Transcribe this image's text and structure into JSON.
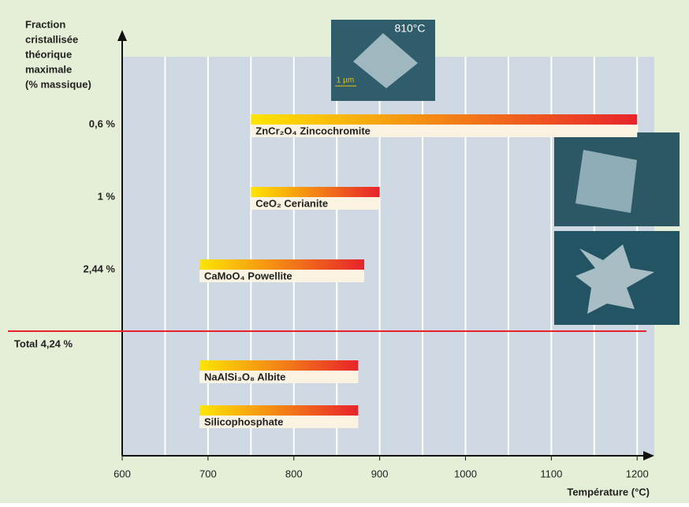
{
  "chart_data": {
    "type": "range",
    "y_title_lines": [
      "Fraction",
      "cristallisée",
      "théorique",
      "maximale",
      "(% massique)"
    ],
    "x_title": "Température (°C)",
    "bars": [
      {
        "name": "ZnCr₂O₄ Zincochromite",
        "fraction": "0,6 %",
        "start": 750,
        "end": 1200
      },
      {
        "name": "CeO₂ Cerianite",
        "fraction": "1 %",
        "start": 750,
        "end": 900
      },
      {
        "name": "CaMoO₄ Powellite",
        "fraction": "2,44 %",
        "start": 690,
        "end": 882
      },
      {
        "name": "NaAlSi₃O₈ Albite",
        "start": 690,
        "end": 875
      },
      {
        "name": "Silicophosphate",
        "start": 690,
        "end": 875
      }
    ],
    "total_label": "Total 4,24 %",
    "color_start": "#ffe500",
    "color_end": "#e8232b",
    "xlim": [
      600,
      1220
    ],
    "xticks": [
      600,
      700,
      800,
      900,
      1000,
      1100,
      1200
    ],
    "grid": true,
    "micrograph_label": "810°C",
    "micrograph_scale": "1 µm"
  }
}
